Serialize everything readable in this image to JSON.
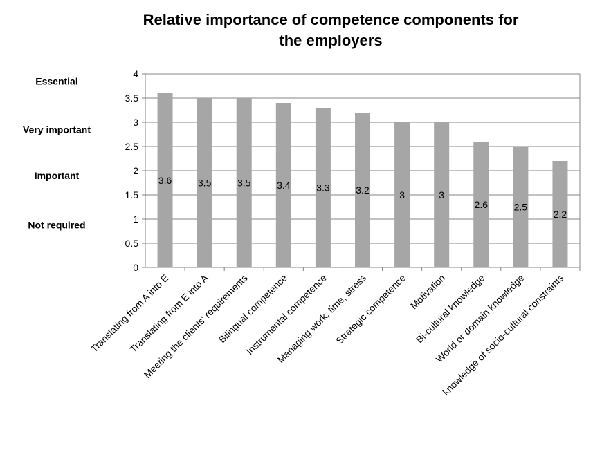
{
  "chart_data": {
    "type": "bar",
    "title": "Relative importance of competence components for the employers",
    "title_lines": [
      "Relative importance  of competence  components  for",
      "the employers"
    ],
    "categories": [
      "Translating from A into E",
      "Translating from E into A",
      "Meeting the clients' requirements",
      "Bilingual competence",
      "Instrumental competence",
      "Managing work, time, stress",
      "Strategic competence",
      "Motivation",
      "Bi-cultural knowledge",
      "World or domain knowledge",
      "knowledge of socio-cultural constraints"
    ],
    "values": [
      3.6,
      3.5,
      3.5,
      3.4,
      3.3,
      3.2,
      3,
      3,
      2.6,
      2.5,
      2.2
    ],
    "data_labels": [
      "3.6",
      "3.5",
      "3.5",
      "3.4",
      "3.3",
      "3.2",
      "3",
      "3",
      "2.6",
      "2.5",
      "2.2"
    ],
    "ylim": [
      0,
      4
    ],
    "yticks": [
      "0",
      "0.5",
      "1",
      "1.5",
      "2",
      "2.5",
      "3",
      "3.5",
      "4"
    ],
    "ytick_values": [
      0,
      0.5,
      1,
      1.5,
      2,
      2.5,
      3,
      3.5,
      4
    ],
    "xlabel": "",
    "ylabel": "",
    "level_labels": [
      {
        "text": "Essential",
        "value": 3.85
      },
      {
        "text": "Very important",
        "value": 2.85
      },
      {
        "text": "Important",
        "value": 1.9
      },
      {
        "text": "Not required",
        "value": 0.88
      }
    ],
    "grid": true,
    "legend": false,
    "colors": {
      "bar": "#a6a6a6",
      "grid": "#868686",
      "axis": "#868686",
      "frame": "#8c8c8c"
    }
  }
}
